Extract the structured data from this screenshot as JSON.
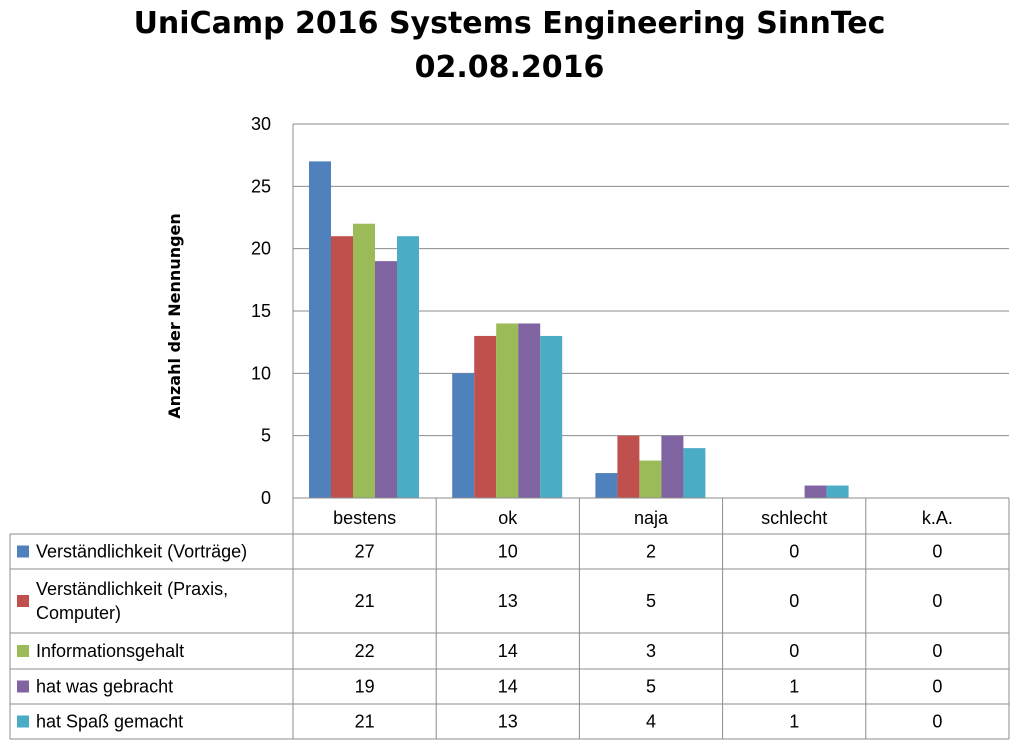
{
  "chart_data": {
    "type": "bar",
    "title_line1": "UniCamp 2016 Systems Engineering SinnTec",
    "title_line2": "02.08.2016",
    "ylabel": "Anzahl der Nennungen",
    "ylim": [
      0,
      30
    ],
    "yticks": [
      "0",
      "5",
      "10",
      "15",
      "20",
      "25",
      "30"
    ],
    "grid": true,
    "legend": "data-table",
    "categories": [
      "bestens",
      "ok",
      "naja",
      "schlecht",
      "k.A."
    ],
    "series": [
      {
        "name": "Verständlichkeit (Vorträge)",
        "name_lines": [
          "Verständlichkeit (Vorträge)"
        ],
        "color": "#4F81BD",
        "values": [
          27,
          10,
          2,
          0,
          0
        ]
      },
      {
        "name": "Verständlichkeit (Praxis, Computer)",
        "name_lines": [
          "Verständlichkeit (Praxis,",
          "Computer)"
        ],
        "color": "#C0504D",
        "values": [
          21,
          13,
          5,
          0,
          0
        ]
      },
      {
        "name": "Informationsgehalt",
        "name_lines": [
          "Informationsgehalt"
        ],
        "color": "#9BBB59",
        "values": [
          22,
          14,
          3,
          0,
          0
        ]
      },
      {
        "name": "hat was gebracht",
        "name_lines": [
          "hat was gebracht"
        ],
        "color": "#8064A2",
        "values": [
          19,
          14,
          5,
          1,
          0
        ]
      },
      {
        "name": "hat Spaß gemacht",
        "name_lines": [
          "hat Spaß gemacht"
        ],
        "color": "#4BACC6",
        "values": [
          21,
          13,
          4,
          1,
          0
        ]
      }
    ]
  }
}
